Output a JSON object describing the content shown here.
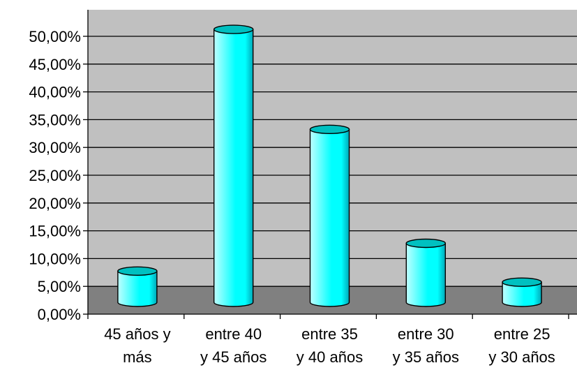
{
  "chart_data": {
    "type": "bar",
    "style": "3d-cylinder",
    "categories": [
      [
        "45 años y",
        "más"
      ],
      [
        "entre 40",
        "y 45 años"
      ],
      [
        "entre 35",
        "y 40 años"
      ],
      [
        "entre 30",
        "y 35 años"
      ],
      [
        "entre 25",
        "y 30 años"
      ]
    ],
    "values": [
      7.5,
      51.0,
      33.0,
      12.5,
      5.5
    ],
    "y_ticks": [
      "0,00%",
      "5,00%",
      "10,00%",
      "15,00%",
      "20,00%",
      "25,00%",
      "30,00%",
      "35,00%",
      "40,00%",
      "45,00%",
      "50,00%"
    ],
    "ylim": [
      0,
      55
    ],
    "grid": true,
    "legend": "none",
    "title": "",
    "xlabel": "",
    "ylabel": "",
    "colors": {
      "bar_body": "#00FFFF",
      "bar_highlight": "#BFFFFF",
      "bar_top": "#00C0C0",
      "bar_shadow": "#00A8B8",
      "wall": "#C0C0C0",
      "floor": "#808080",
      "gridline": "#000000"
    }
  }
}
